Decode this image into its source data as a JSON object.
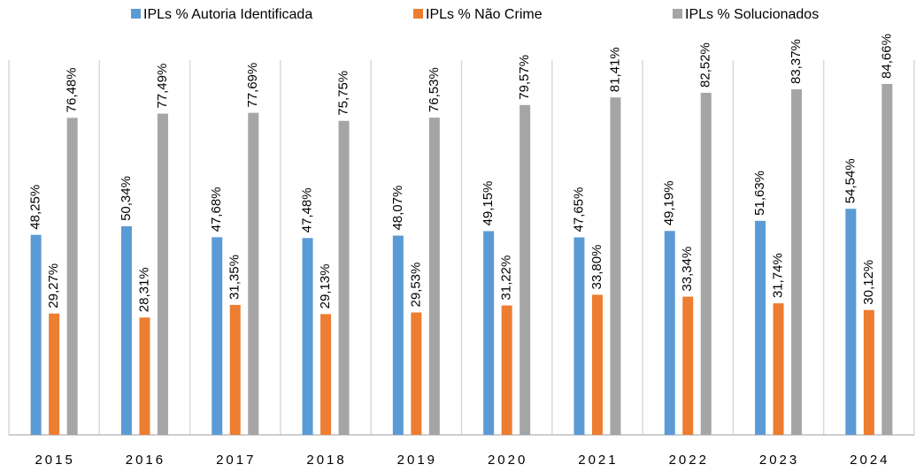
{
  "chart_data": {
    "type": "bar",
    "categories": [
      "2015",
      "2016",
      "2017",
      "2018",
      "2019",
      "2020",
      "2021",
      "2022",
      "2023",
      "2024"
    ],
    "series": [
      {
        "name": "IPLs % Autoria Identificada",
        "color": "#5b9bd5",
        "values": [
          48.25,
          50.34,
          47.68,
          47.48,
          48.07,
          49.15,
          47.65,
          49.19,
          51.63,
          54.54
        ],
        "value_labels": [
          "48,25%",
          "50,34%",
          "47,68%",
          "47,48%",
          "48,07%",
          "49,15%",
          "47,65%",
          "49,19%",
          "51,63%",
          "54,54%"
        ]
      },
      {
        "name": "IPLs % Não Crime",
        "color": "#ed7d31",
        "values": [
          29.27,
          28.31,
          31.35,
          29.13,
          29.53,
          31.22,
          33.8,
          33.34,
          31.74,
          30.12
        ],
        "value_labels": [
          "29,27%",
          "28,31%",
          "31,35%",
          "29,13%",
          "29,53%",
          "31,22%",
          "33,80%",
          "33,34%",
          "31,74%",
          "30,12%"
        ]
      },
      {
        "name": "IPLs % Solucionados",
        "color": "#a5a5a5",
        "values": [
          76.48,
          77.49,
          77.69,
          75.75,
          76.53,
          79.57,
          81.41,
          82.52,
          83.37,
          84.66
        ],
        "value_labels": [
          "76,48%",
          "77,49%",
          "77,69%",
          "75,75%",
          "76,53%",
          "79,57%",
          "81,41%",
          "82,52%",
          "83,37%",
          "84,66%"
        ]
      }
    ],
    "ylim": [
      0,
      100
    ],
    "legend": "top"
  }
}
